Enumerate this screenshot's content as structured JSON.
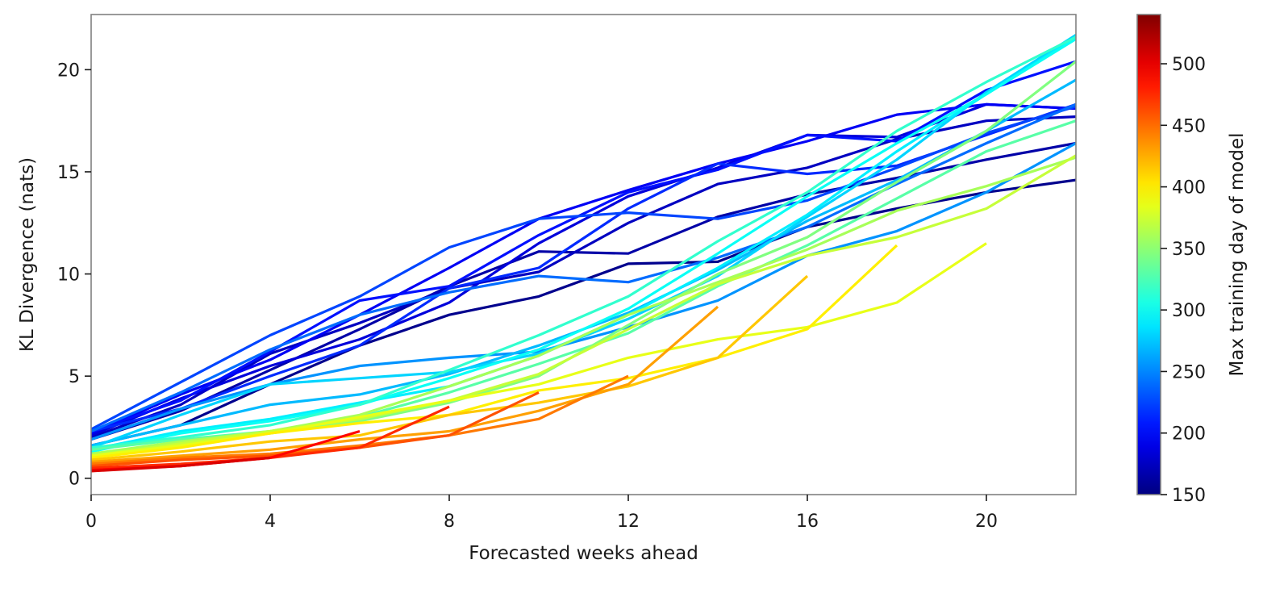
{
  "chart_data": {
    "type": "line",
    "title": "",
    "xlabel": "Forecasted weeks ahead",
    "ylabel": "KL Divergence (nats)",
    "xlim": [
      0,
      22
    ],
    "ylim": [
      -0.8,
      22.7
    ],
    "xticks": [
      0,
      4,
      8,
      12,
      16,
      20
    ],
    "yticks": [
      0,
      5,
      10,
      15,
      20
    ],
    "grid": false,
    "legend": "none",
    "colorbar": {
      "label": "Max training day of model",
      "colormap": "jet",
      "range": [
        150,
        540
      ],
      "ticks": [
        150,
        200,
        250,
        300,
        350,
        400,
        450,
        500
      ]
    },
    "series": [
      {
        "day": 155,
        "x": [
          0,
          2,
          4,
          6,
          8,
          10,
          12,
          14,
          16,
          18,
          20,
          22
        ],
        "y": [
          1.6,
          2.6,
          4.6,
          6.5,
          8.0,
          8.9,
          10.5,
          10.6,
          12.3,
          13.2,
          14.0,
          14.6
        ]
      },
      {
        "day": 165,
        "x": [
          0,
          2,
          4,
          6,
          8,
          10,
          12,
          14,
          16,
          18,
          20,
          22
        ],
        "y": [
          1.9,
          3.3,
          5.3,
          7.3,
          9.4,
          11.1,
          11.0,
          12.8,
          13.9,
          14.7,
          15.6,
          16.4
        ]
      },
      {
        "day": 175,
        "x": [
          0,
          2,
          4,
          6,
          8,
          10,
          12,
          14,
          16,
          18,
          20,
          22
        ],
        "y": [
          2.0,
          3.6,
          6.1,
          7.6,
          9.3,
          10.1,
          12.5,
          14.4,
          15.2,
          16.6,
          17.5,
          17.7
        ]
      },
      {
        "day": 185,
        "x": [
          0,
          2,
          4,
          6,
          8,
          10,
          12,
          14,
          16,
          18,
          20,
          22
        ],
        "y": [
          2.1,
          3.9,
          5.5,
          6.8,
          8.6,
          11.5,
          13.8,
          15.2,
          16.8,
          16.7,
          18.3,
          18.1
        ]
      },
      {
        "day": 195,
        "x": [
          0,
          2,
          4,
          6,
          8,
          10,
          12,
          14,
          16,
          18,
          20,
          22
        ],
        "y": [
          2.2,
          4.1,
          5.8,
          8.0,
          10.3,
          12.7,
          14.1,
          15.4,
          16.5,
          17.8,
          18.3,
          18.1
        ]
      },
      {
        "day": 205,
        "x": [
          0,
          2,
          4,
          6,
          8,
          10,
          12,
          14,
          16,
          18,
          20,
          22
        ],
        "y": [
          2.3,
          3.8,
          6.2,
          8.7,
          9.4,
          11.9,
          14.0,
          15.1,
          16.8,
          16.5,
          19.0,
          20.4
        ]
      },
      {
        "day": 215,
        "x": [
          0,
          2,
          4,
          6,
          8,
          10,
          12,
          14,
          16,
          18,
          20,
          22
        ],
        "y": [
          2.3,
          3.4,
          5.0,
          6.5,
          9.3,
          10.3,
          13.2,
          15.4,
          14.9,
          15.3,
          16.8,
          18.3
        ]
      },
      {
        "day": 225,
        "x": [
          0,
          2,
          4,
          6,
          8,
          10,
          12,
          14,
          16,
          18,
          20,
          22
        ],
        "y": [
          2.4,
          4.7,
          7.0,
          8.9,
          11.3,
          12.7,
          13.0,
          12.7,
          13.6,
          15.2,
          16.9,
          18.2
        ]
      },
      {
        "day": 240,
        "x": [
          0,
          2,
          4,
          6,
          8,
          10,
          12,
          14,
          16,
          18,
          20,
          22
        ],
        "y": [
          2.3,
          4.2,
          6.3,
          8.0,
          9.1,
          9.9,
          9.6,
          10.8,
          12.3,
          14.4,
          16.4,
          18.3
        ]
      },
      {
        "day": 255,
        "x": [
          0,
          2,
          4,
          6,
          8,
          10,
          12,
          14,
          16,
          18,
          20,
          22
        ],
        "y": [
          1.9,
          3.4,
          4.6,
          5.5,
          5.9,
          6.2,
          7.4,
          8.7,
          10.9,
          12.1,
          14.0,
          16.4
        ]
      },
      {
        "day": 270,
        "x": [
          0,
          2,
          4,
          6,
          8,
          10,
          12,
          14,
          16,
          18,
          20,
          22
        ],
        "y": [
          1.6,
          2.6,
          3.6,
          4.1,
          5.1,
          6.5,
          8.1,
          10.2,
          12.6,
          14.6,
          17.0,
          19.5
        ]
      },
      {
        "day": 280,
        "x": [
          0,
          2,
          4,
          6,
          8,
          10,
          12,
          14,
          16,
          18,
          20,
          22
        ],
        "y": [
          1.5,
          3.1,
          4.6,
          4.9,
          5.2,
          6.1,
          7.8,
          9.9,
          12.8,
          15.6,
          18.9,
          21.7
        ]
      },
      {
        "day": 290,
        "x": [
          0,
          2,
          4,
          6,
          8,
          10,
          12,
          14,
          16,
          18,
          20,
          22
        ],
        "y": [
          1.4,
          2.3,
          2.9,
          3.7,
          4.5,
          6.0,
          8.0,
          10.3,
          12.9,
          16.0,
          18.8,
          21.6
        ]
      },
      {
        "day": 300,
        "x": [
          0,
          2,
          4,
          6,
          8,
          10,
          12,
          14,
          16,
          18,
          20,
          22
        ],
        "y": [
          1.3,
          2.2,
          2.8,
          3.6,
          4.9,
          6.3,
          8.3,
          11.0,
          13.8,
          16.4,
          18.8,
          21.5
        ]
      },
      {
        "day": 315,
        "x": [
          0,
          2,
          4,
          6,
          8,
          10,
          12,
          14,
          16,
          18,
          20,
          22
        ],
        "y": [
          1.5,
          2.0,
          2.6,
          3.6,
          5.3,
          7.0,
          8.9,
          11.6,
          14.0,
          17.0,
          19.4,
          21.6
        ]
      },
      {
        "day": 330,
        "x": [
          0,
          2,
          4,
          6,
          8,
          10,
          12,
          14,
          16,
          18,
          20,
          22
        ],
        "y": [
          1.4,
          1.9,
          2.3,
          3.0,
          4.2,
          5.6,
          7.1,
          9.4,
          11.4,
          13.7,
          16.0,
          17.5
        ]
      },
      {
        "day": 345,
        "x": [
          0,
          2,
          4,
          6,
          8,
          10,
          12,
          14,
          16,
          18,
          20,
          22
        ],
        "y": [
          1.2,
          1.7,
          2.2,
          2.8,
          3.7,
          5.0,
          7.5,
          10.0,
          11.8,
          14.5,
          17.0,
          20.4
        ]
      },
      {
        "day": 360,
        "x": [
          0,
          2,
          4,
          6,
          8,
          10,
          12,
          14,
          16,
          18,
          20,
          22
        ],
        "y": [
          1.2,
          1.8,
          2.3,
          3.1,
          4.5,
          6.0,
          8.0,
          9.6,
          11.2,
          13.1,
          14.3,
          15.7
        ]
      },
      {
        "day": 372,
        "x": [
          0,
          2,
          4,
          6,
          8,
          10,
          12,
          14,
          16,
          18,
          20,
          22
        ],
        "y": [
          1.1,
          1.7,
          2.3,
          2.9,
          3.8,
          5.1,
          7.3,
          9.5,
          10.9,
          11.8,
          13.2,
          15.8
        ]
      },
      {
        "day": 385,
        "x": [
          0,
          2,
          4,
          6,
          8,
          10,
          12,
          14,
          16,
          18,
          20
        ],
        "y": [
          1.1,
          1.6,
          2.2,
          3.0,
          3.8,
          4.6,
          5.9,
          6.8,
          7.4,
          8.6,
          11.5
        ]
      },
      {
        "day": 400,
        "x": [
          0,
          2,
          4,
          6,
          8,
          10,
          12,
          14,
          16,
          18
        ],
        "y": [
          1.0,
          1.5,
          2.2,
          2.7,
          3.1,
          4.3,
          4.9,
          5.9,
          7.3,
          11.4
        ]
      },
      {
        "day": 415,
        "x": [
          0,
          2,
          4,
          6,
          8,
          10,
          12,
          14,
          16
        ],
        "y": [
          0.9,
          1.3,
          1.8,
          2.1,
          3.1,
          3.7,
          4.5,
          5.9,
          9.9
        ]
      },
      {
        "day": 430,
        "x": [
          0,
          2,
          4,
          6,
          8,
          10,
          12,
          14
        ],
        "y": [
          0.8,
          1.1,
          1.4,
          1.9,
          2.3,
          3.3,
          4.6,
          8.4
        ]
      },
      {
        "day": 445,
        "x": [
          0,
          2,
          4,
          6,
          8,
          10,
          12
        ],
        "y": [
          0.7,
          1.0,
          1.2,
          1.6,
          2.1,
          2.9,
          5.0
        ]
      },
      {
        "day": 460,
        "x": [
          0,
          2,
          4,
          6,
          8,
          10
        ],
        "y": [
          0.6,
          0.9,
          1.1,
          1.5,
          2.1,
          4.2
        ]
      },
      {
        "day": 475,
        "x": [
          0,
          2,
          4,
          6,
          8
        ],
        "y": [
          0.5,
          0.7,
          1.0,
          1.5,
          3.5
        ]
      },
      {
        "day": 490,
        "x": [
          0,
          2,
          4,
          6
        ],
        "y": [
          0.4,
          0.6,
          1.0,
          2.3
        ]
      },
      {
        "day": 505,
        "x": [
          0,
          2,
          4
        ],
        "y": [
          0.35,
          0.6,
          1.0
        ]
      }
    ]
  }
}
